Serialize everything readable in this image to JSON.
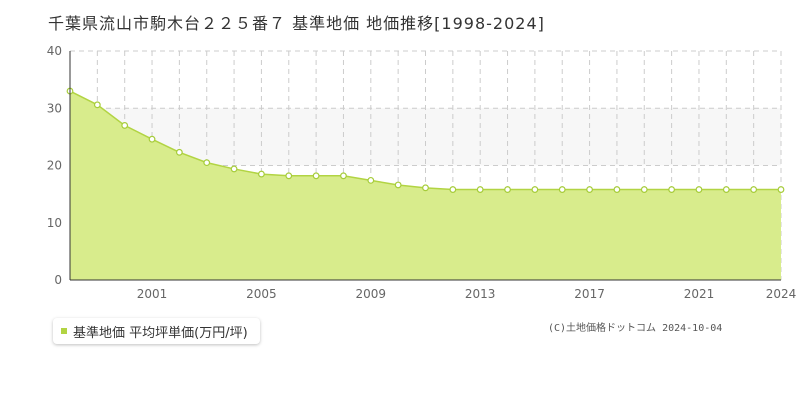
{
  "title": "千葉県流山市駒木台２２５番７ 基準地価 地価推移[1998-2024]",
  "legend": {
    "label": "基準地価 平均坪単価(万円/坪)"
  },
  "copyright": "(C)土地価格ドットコム 2024-10-04",
  "colors": {
    "area_fill": "#d8ec8c",
    "line": "#b2d443",
    "marker_fill": "#ffffff",
    "marker_stroke": "#a6cc3a",
    "band": "#f7f7f7",
    "grid": "#cccccc"
  },
  "chart_data": {
    "type": "area",
    "x": [
      1998,
      1999,
      2000,
      2001,
      2002,
      2003,
      2004,
      2005,
      2006,
      2007,
      2008,
      2009,
      2010,
      2011,
      2012,
      2013,
      2014,
      2015,
      2016,
      2017,
      2018,
      2019,
      2020,
      2021,
      2022,
      2023,
      2024
    ],
    "series": [
      {
        "name": "基準地価 平均坪単価(万円/坪)",
        "values": [
          33.0,
          30.6,
          27.0,
          24.6,
          22.3,
          20.5,
          19.4,
          18.5,
          18.2,
          18.2,
          18.2,
          17.4,
          16.6,
          16.1,
          15.8,
          15.8,
          15.8,
          15.8,
          15.8,
          15.8,
          15.8,
          15.8,
          15.8,
          15.8,
          15.8,
          15.8,
          15.8
        ]
      }
    ],
    "xlim": [
      1998,
      2024
    ],
    "ylim": [
      0,
      40
    ],
    "y_ticks": [
      0,
      10,
      20,
      30,
      40
    ],
    "x_tick_labels": [
      "2001",
      "2005",
      "2009",
      "2013",
      "2017",
      "2021",
      "2024"
    ],
    "grid": true,
    "legend_position": "bottom-left"
  }
}
